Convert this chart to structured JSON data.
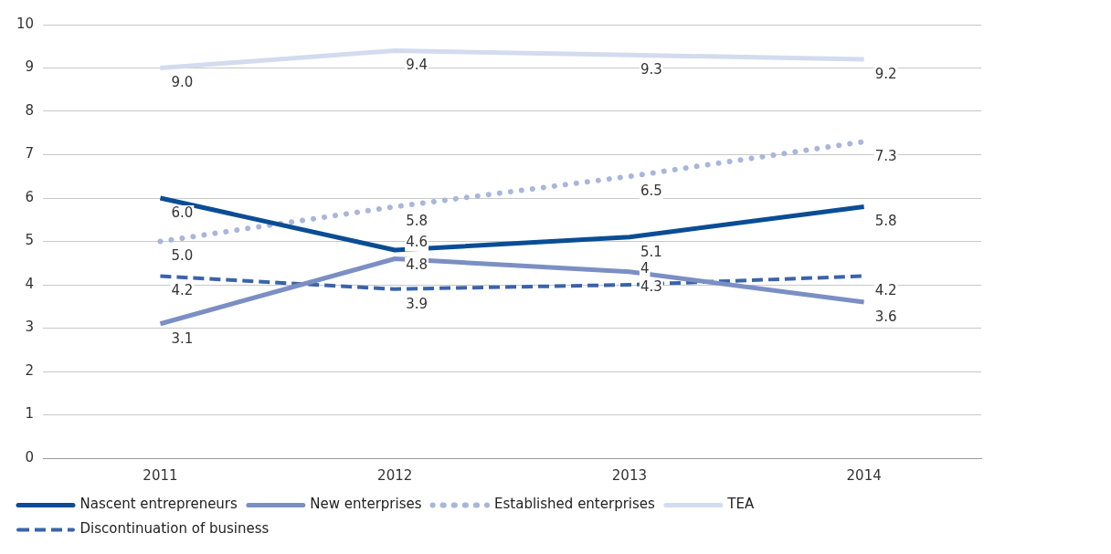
{
  "chart_data": {
    "type": "line",
    "categories": [
      "2011",
      "2012",
      "2013",
      "2014"
    ],
    "series": [
      {
        "name": "Nascent entrepreneurs",
        "color": "#0a4d94",
        "values": [
          6.0,
          4.8,
          5.1,
          5.8
        ],
        "value_labels": [
          "6.0",
          "4.8",
          "5.1",
          "5.8"
        ],
        "line_style": "solid"
      },
      {
        "name": "New enterprises",
        "color": "#7b8fc4",
        "values": [
          3.1,
          4.6,
          4.3,
          3.6
        ],
        "value_labels": [
          "3.1",
          "4.6",
          "4.3",
          "3.6"
        ],
        "line_style": "solid"
      },
      {
        "name": "Established enterprises",
        "color": "#a9b6dc",
        "values": [
          5.0,
          5.8,
          6.5,
          7.3
        ],
        "value_labels": [
          "5.0",
          "5.8",
          "6.5",
          "7.3"
        ],
        "line_style": "dotted"
      },
      {
        "name": "TEA",
        "color": "#d3dbee",
        "values": [
          9.0,
          9.4,
          9.3,
          9.2
        ],
        "value_labels": [
          "9.0",
          "9.4",
          "9.3",
          "9.2"
        ],
        "line_style": "solid"
      },
      {
        "name": "Discontinuation of business",
        "color": "#3a63aa",
        "values": [
          4.2,
          3.9,
          4,
          4.2
        ],
        "value_labels": [
          "4.2",
          "3.9",
          "4",
          "4.2"
        ],
        "line_style": "dashed"
      }
    ],
    "ylim": [
      0,
      10
    ],
    "yticks": [
      0,
      1,
      2,
      3,
      4,
      5,
      6,
      7,
      8,
      9,
      10
    ],
    "grid": "y",
    "legend": "bottom",
    "marker": "none"
  }
}
